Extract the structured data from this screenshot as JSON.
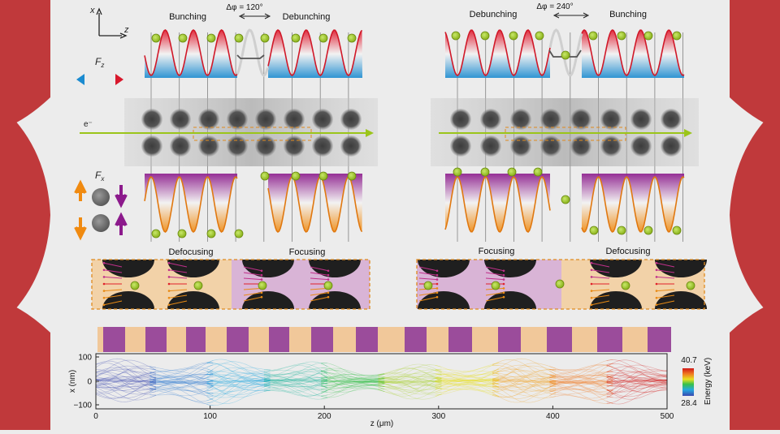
{
  "axes_indicator": {
    "x_label": "x",
    "z_label": "z"
  },
  "left_panel": {
    "phase_shift_label": "Δφ = 120°",
    "left_region_label": "Bunching",
    "right_region_label": "Debunching",
    "focus_left_label": "Defocusing",
    "focus_right_label": "Focusing"
  },
  "right_panel": {
    "phase_shift_label": "Δφ = 240°",
    "left_region_label": "Debunching",
    "right_region_label": "Bunching",
    "focus_left_label": "Focusing",
    "focus_right_label": "Defocusing"
  },
  "force_labels": {
    "longitudinal": "F",
    "longitudinal_sub": "z",
    "transverse": "F",
    "transverse_sub": "x"
  },
  "electron_label": "e⁻",
  "trajectory_plot": {
    "ylabel": "x (nm)",
    "xlabel": "z (μm)",
    "y_ticks": [
      "100",
      "0",
      "−100"
    ],
    "x_ticks": [
      "0",
      "100",
      "200",
      "300",
      "400",
      "500"
    ],
    "colorbar_label": "Energy (keV)",
    "colorbar_max": "40.7",
    "colorbar_min": "28.4"
  },
  "colors": {
    "background": "#ececec",
    "frame": "#c0393b",
    "electron_beam": "#9bc51a",
    "focusing_region": "#d9b4d6",
    "defocusing_region": "#f2d2a8",
    "segment_purple": "#9b4c9b",
    "segment_tan": "#f1c89a",
    "dashed_outline": "#e08a1e"
  }
}
